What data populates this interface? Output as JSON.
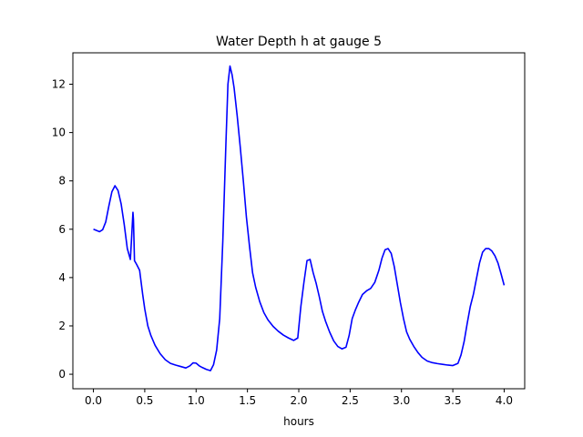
{
  "chart_data": {
    "type": "line",
    "title": "Water Depth h at gauge 5",
    "xlabel": "hours",
    "ylabel": "",
    "xlim": [
      -0.2,
      4.2
    ],
    "ylim": [
      -0.6,
      13.3
    ],
    "xticks": [
      0.0,
      0.5,
      1.0,
      1.5,
      2.0,
      2.5,
      3.0,
      3.5,
      4.0
    ],
    "xtick_labels": [
      "0.0",
      "0.5",
      "1.0",
      "1.5",
      "2.0",
      "2.5",
      "3.0",
      "3.5",
      "4.0"
    ],
    "yticks": [
      0,
      2,
      4,
      6,
      8,
      10,
      12
    ],
    "ytick_labels": [
      "0",
      "2",
      "4",
      "6",
      "8",
      "10",
      "12"
    ],
    "grid": false,
    "series": [
      {
        "color": "#0000ff",
        "x": [
          0.0,
          0.03,
          0.06,
          0.09,
          0.12,
          0.15,
          0.18,
          0.21,
          0.24,
          0.27,
          0.3,
          0.33,
          0.36,
          0.37,
          0.385,
          0.39,
          0.4,
          0.42,
          0.45,
          0.48,
          0.5,
          0.53,
          0.56,
          0.6,
          0.65,
          0.7,
          0.75,
          0.8,
          0.85,
          0.9,
          0.94,
          0.97,
          1.0,
          1.03,
          1.06,
          1.1,
          1.14,
          1.17,
          1.2,
          1.23,
          1.26,
          1.29,
          1.31,
          1.33,
          1.35,
          1.37,
          1.4,
          1.43,
          1.46,
          1.49,
          1.52,
          1.55,
          1.58,
          1.62,
          1.66,
          1.7,
          1.75,
          1.8,
          1.85,
          1.9,
          1.95,
          1.99,
          2.02,
          2.05,
          2.08,
          2.11,
          2.14,
          2.17,
          2.2,
          2.23,
          2.26,
          2.3,
          2.34,
          2.38,
          2.42,
          2.46,
          2.49,
          2.52,
          2.55,
          2.58,
          2.62,
          2.66,
          2.7,
          2.74,
          2.78,
          2.81,
          2.84,
          2.87,
          2.9,
          2.93,
          2.96,
          2.99,
          3.02,
          3.05,
          3.08,
          3.12,
          3.16,
          3.2,
          3.25,
          3.3,
          3.35,
          3.4,
          3.45,
          3.5,
          3.55,
          3.58,
          3.61,
          3.64,
          3.67,
          3.7,
          3.73,
          3.76,
          3.79,
          3.82,
          3.85,
          3.88,
          3.91,
          3.94,
          3.97,
          4.0
        ],
        "y": [
          6.0,
          5.95,
          5.9,
          5.98,
          6.3,
          6.95,
          7.55,
          7.8,
          7.6,
          7.05,
          6.2,
          5.2,
          4.75,
          5.5,
          6.7,
          6.4,
          4.7,
          4.55,
          4.3,
          3.3,
          2.7,
          2.0,
          1.6,
          1.2,
          0.85,
          0.6,
          0.45,
          0.38,
          0.32,
          0.26,
          0.35,
          0.47,
          0.46,
          0.35,
          0.28,
          0.2,
          0.15,
          0.4,
          1.0,
          2.3,
          5.5,
          9.5,
          12.0,
          12.75,
          12.4,
          11.85,
          10.7,
          9.4,
          8.0,
          6.5,
          5.3,
          4.2,
          3.6,
          3.0,
          2.55,
          2.25,
          1.98,
          1.78,
          1.62,
          1.5,
          1.4,
          1.5,
          2.8,
          3.8,
          4.7,
          4.75,
          4.2,
          3.75,
          3.2,
          2.6,
          2.2,
          1.75,
          1.38,
          1.15,
          1.05,
          1.12,
          1.6,
          2.3,
          2.65,
          2.95,
          3.3,
          3.45,
          3.55,
          3.8,
          4.3,
          4.8,
          5.15,
          5.2,
          5.0,
          4.45,
          3.7,
          2.95,
          2.3,
          1.75,
          1.45,
          1.15,
          0.9,
          0.7,
          0.55,
          0.48,
          0.44,
          0.41,
          0.38,
          0.36,
          0.45,
          0.8,
          1.35,
          2.1,
          2.8,
          3.3,
          3.95,
          4.6,
          5.05,
          5.2,
          5.2,
          5.1,
          4.9,
          4.6,
          4.15,
          3.68
        ]
      }
    ]
  }
}
